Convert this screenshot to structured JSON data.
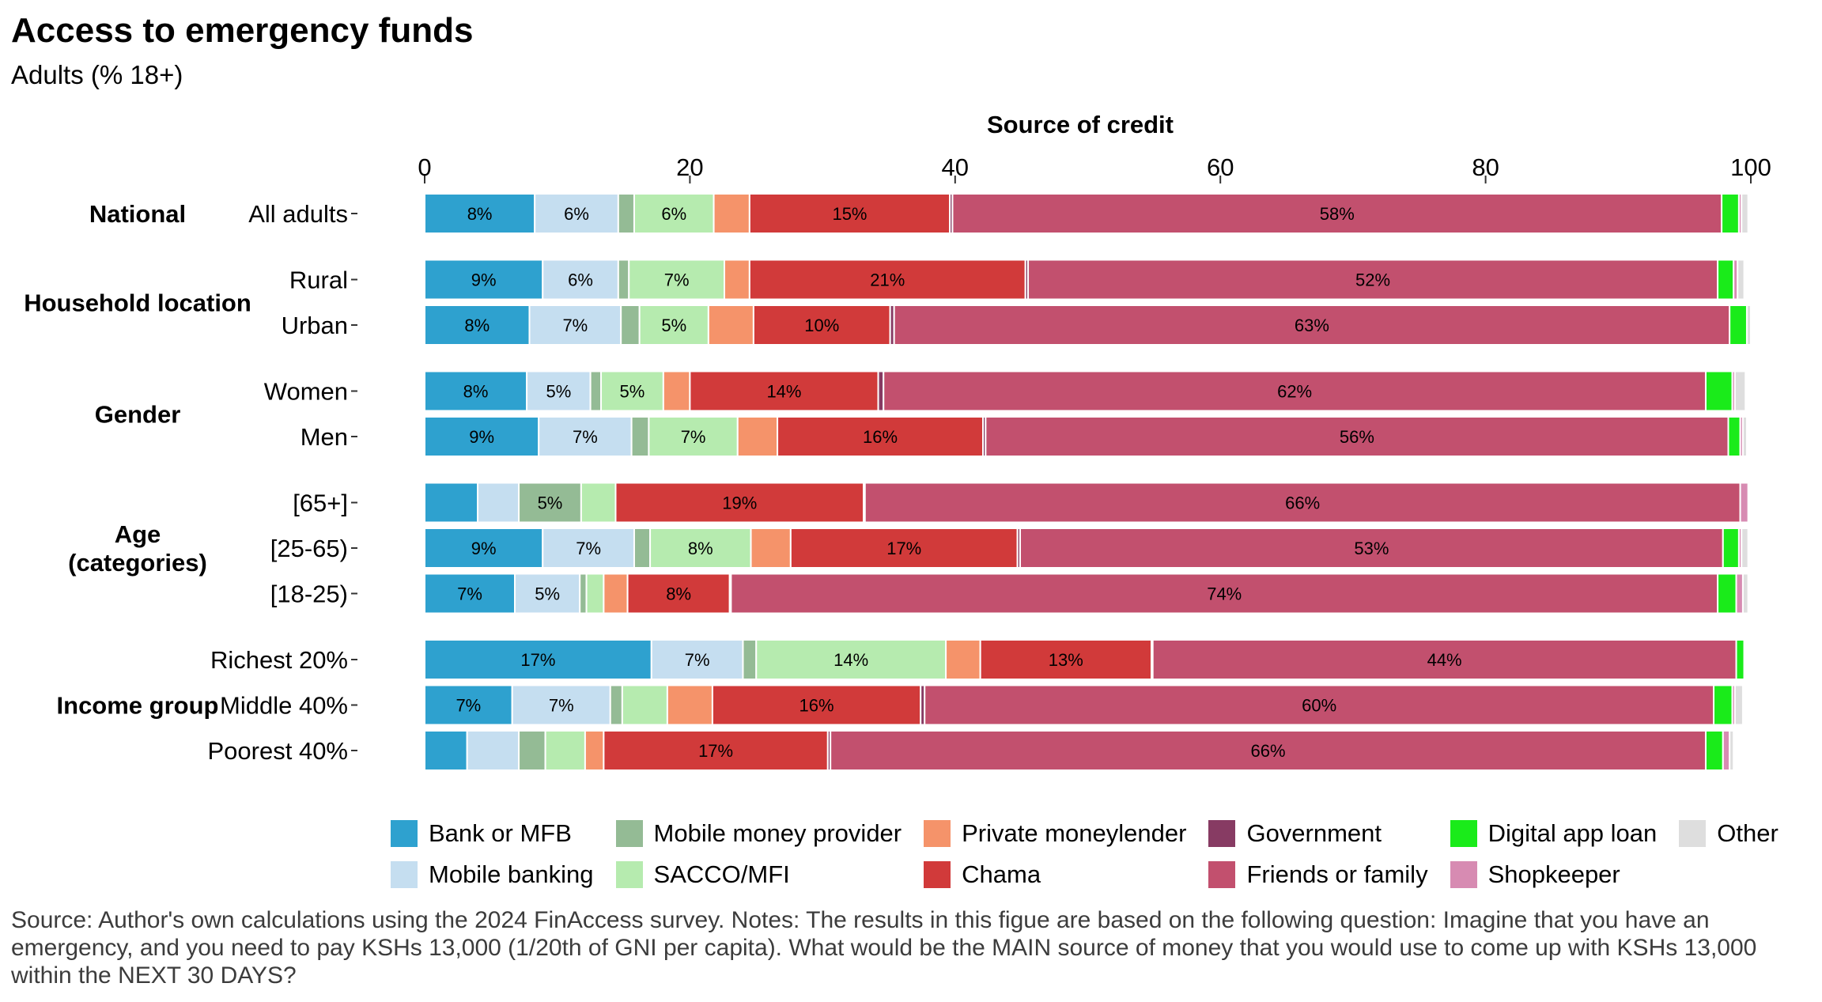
{
  "title": "Access to emergency funds",
  "subtitle": "Adults (% 18+)",
  "footnote": "Source: Author's own calculations using the 2024 FinAccess survey. Notes: The results in this figue are based on the following question: Imagine that you have an emergency, and you need to pay KSHs 13,000 (1/20th of GNI per capita). What would be the MAIN source of money that you would use to come up with KSHs 13,000 within the NEXT 30 DAYS?",
  "chart_data": {
    "type": "bar",
    "orientation": "horizontal-stacked",
    "title": "Access to emergency funds",
    "subtitle": "Adults (% 18+)",
    "xlabel": "Source of credit",
    "xlim": [
      0,
      100
    ],
    "xticks": [
      0,
      20,
      40,
      60,
      80,
      100
    ],
    "x_axis_position": "top",
    "legend_position": "bottom",
    "grid": false,
    "series": [
      {
        "name": "Bank or MFB",
        "color": "#2ea1cf"
      },
      {
        "name": "Mobile banking",
        "color": "#c5def0"
      },
      {
        "name": "Mobile money provider",
        "color": "#94bb95"
      },
      {
        "name": "SACCO/MFI",
        "color": "#b6ebaf"
      },
      {
        "name": "Private moneylender",
        "color": "#f5936a"
      },
      {
        "name": "Chama",
        "color": "#d13a3a"
      },
      {
        "name": "Government",
        "color": "#873b63"
      },
      {
        "name": "Friends or family",
        "color": "#c2506e"
      },
      {
        "name": "Digital app loan",
        "color": "#1aeb1a"
      },
      {
        "name": "Shopkeeper",
        "color": "#d78bb2"
      },
      {
        "name": "Other",
        "color": "#dedede"
      }
    ],
    "groups": [
      {
        "name": "National",
        "rows": [
          {
            "label": "All adults",
            "values": [
              8.3,
              6.3,
              1.2,
              6.0,
              2.7,
              15.1,
              0.2,
              58.0,
              1.3,
              0.2,
              0.5
            ]
          }
        ]
      },
      {
        "name": "Household location",
        "rows": [
          {
            "label": "Rural",
            "values": [
              8.9,
              5.7,
              0.8,
              7.2,
              1.9,
              20.8,
              0.2,
              52.0,
              1.2,
              0.3,
              0.5
            ]
          },
          {
            "label": "Urban",
            "values": [
              7.9,
              6.9,
              1.4,
              5.2,
              3.4,
              10.3,
              0.3,
              63.0,
              1.3,
              0.0,
              0.3
            ]
          }
        ]
      },
      {
        "name": "Gender",
        "rows": [
          {
            "label": "Women",
            "values": [
              7.7,
              4.8,
              0.8,
              4.7,
              2.0,
              14.2,
              0.4,
              62.0,
              2.0,
              0.2,
              0.8
            ]
          },
          {
            "label": "Men",
            "values": [
              8.6,
              7.0,
              1.3,
              6.7,
              3.0,
              15.5,
              0.2,
              56.0,
              0.9,
              0.2,
              0.3
            ]
          }
        ]
      },
      {
        "name": "Age\n(categories)",
        "rows": [
          {
            "label": "[65+]",
            "values": [
              4.0,
              3.1,
              4.7,
              2.6,
              0.0,
              18.7,
              0.1,
              66.0,
              0.0,
              0.6,
              0.0
            ]
          },
          {
            "label": "[25-65)",
            "values": [
              8.9,
              6.9,
              1.2,
              7.6,
              3.0,
              17.1,
              0.2,
              53.0,
              1.2,
              0.2,
              0.5
            ]
          },
          {
            "label": "[18-25)",
            "values": [
              6.8,
              4.9,
              0.5,
              1.3,
              1.8,
              7.7,
              0.1,
              74.4,
              1.4,
              0.5,
              0.4
            ]
          }
        ]
      },
      {
        "name": "Income group",
        "rows": [
          {
            "label": "Richest 20%",
            "values": [
              17.1,
              6.9,
              1.0,
              14.3,
              2.6,
              12.9,
              0.1,
              44.0,
              0.6,
              0.0,
              0.1
            ]
          },
          {
            "label": "Middle 40%",
            "values": [
              6.6,
              7.4,
              0.9,
              3.4,
              3.4,
              15.7,
              0.3,
              59.5,
              1.4,
              0.2,
              0.6
            ]
          },
          {
            "label": "Poorest 40%",
            "values": [
              3.2,
              3.9,
              2.0,
              3.0,
              1.4,
              16.9,
              0.2,
              66.0,
              1.3,
              0.5,
              0.3
            ]
          }
        ]
      }
    ]
  }
}
